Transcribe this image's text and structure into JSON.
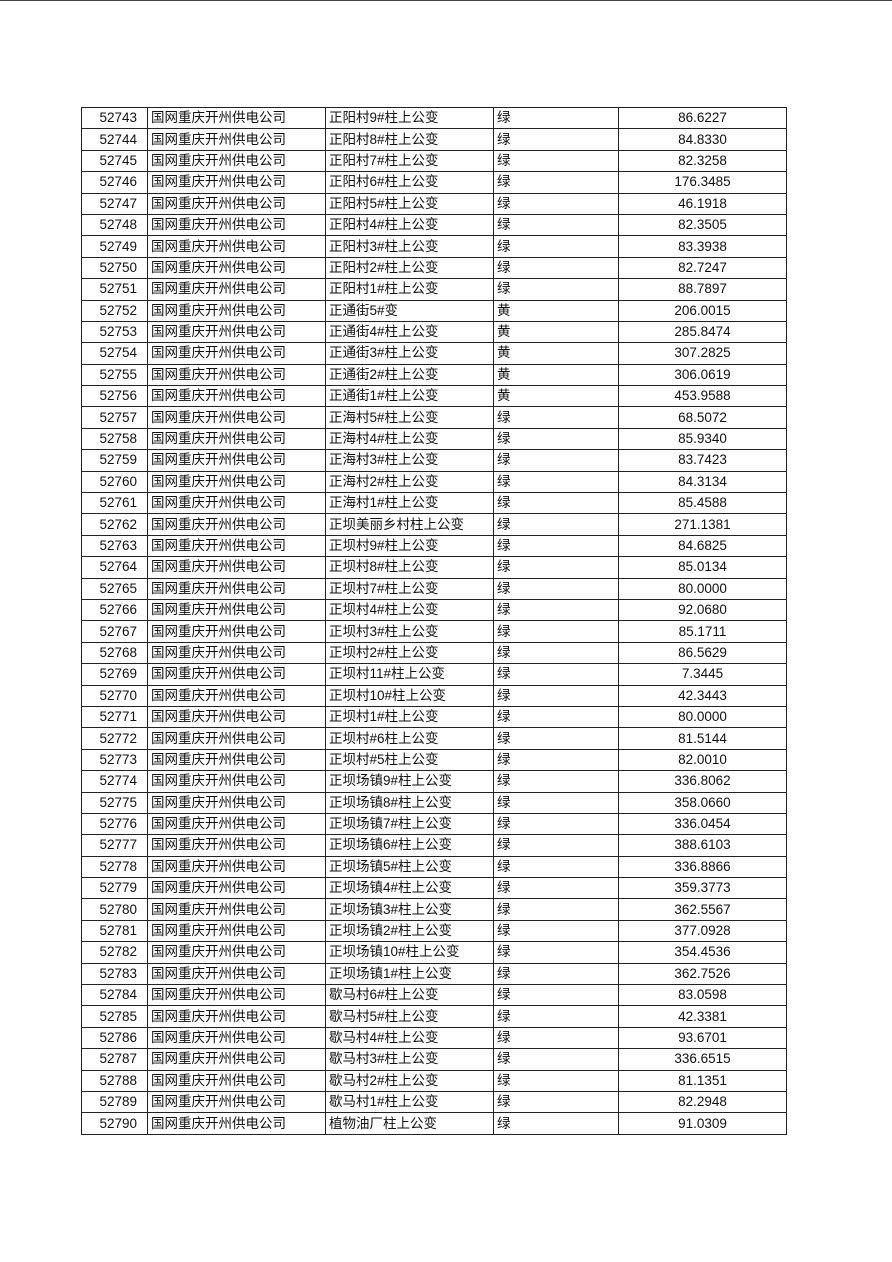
{
  "table": {
    "rows": [
      [
        "52743",
        "国网重庆开州供电公司",
        "正阳村9#柱上公变",
        "绿",
        "86.6227"
      ],
      [
        "52744",
        "国网重庆开州供电公司",
        "正阳村8#柱上公变",
        "绿",
        "84.8330"
      ],
      [
        "52745",
        "国网重庆开州供电公司",
        "正阳村7#柱上公变",
        "绿",
        "82.3258"
      ],
      [
        "52746",
        "国网重庆开州供电公司",
        "正阳村6#柱上公变",
        "绿",
        "176.3485"
      ],
      [
        "52747",
        "国网重庆开州供电公司",
        "正阳村5#柱上公变",
        "绿",
        "46.1918"
      ],
      [
        "52748",
        "国网重庆开州供电公司",
        "正阳村4#柱上公变",
        "绿",
        "82.3505"
      ],
      [
        "52749",
        "国网重庆开州供电公司",
        "正阳村3#柱上公变",
        "绿",
        "83.3938"
      ],
      [
        "52750",
        "国网重庆开州供电公司",
        "正阳村2#柱上公变",
        "绿",
        "82.7247"
      ],
      [
        "52751",
        "国网重庆开州供电公司",
        "正阳村1#柱上公变",
        "绿",
        "88.7897"
      ],
      [
        "52752",
        "国网重庆开州供电公司",
        "正通街5#变",
        "黄",
        "206.0015"
      ],
      [
        "52753",
        "国网重庆开州供电公司",
        "正通街4#柱上公变",
        "黄",
        "285.8474"
      ],
      [
        "52754",
        "国网重庆开州供电公司",
        "正通街3#柱上公变",
        "黄",
        "307.2825"
      ],
      [
        "52755",
        "国网重庆开州供电公司",
        "正通街2#柱上公变",
        "黄",
        "306.0619"
      ],
      [
        "52756",
        "国网重庆开州供电公司",
        "正通街1#柱上公变",
        "黄",
        "453.9588"
      ],
      [
        "52757",
        "国网重庆开州供电公司",
        "正海村5#柱上公变",
        "绿",
        "68.5072"
      ],
      [
        "52758",
        "国网重庆开州供电公司",
        "正海村4#柱上公变",
        "绿",
        "85.9340"
      ],
      [
        "52759",
        "国网重庆开州供电公司",
        "正海村3#柱上公变",
        "绿",
        "83.7423"
      ],
      [
        "52760",
        "国网重庆开州供电公司",
        "正海村2#柱上公变",
        "绿",
        "84.3134"
      ],
      [
        "52761",
        "国网重庆开州供电公司",
        "正海村1#柱上公变",
        "绿",
        "85.4588"
      ],
      [
        "52762",
        "国网重庆开州供电公司",
        "正坝美丽乡村柱上公变",
        "绿",
        "271.1381"
      ],
      [
        "52763",
        "国网重庆开州供电公司",
        "正坝村9#柱上公变",
        "绿",
        "84.6825"
      ],
      [
        "52764",
        "国网重庆开州供电公司",
        "正坝村8#柱上公变",
        "绿",
        "85.0134"
      ],
      [
        "52765",
        "国网重庆开州供电公司",
        "正坝村7#柱上公变",
        "绿",
        "80.0000"
      ],
      [
        "52766",
        "国网重庆开州供电公司",
        "正坝村4#柱上公变",
        "绿",
        "92.0680"
      ],
      [
        "52767",
        "国网重庆开州供电公司",
        "正坝村3#柱上公变",
        "绿",
        "85.1711"
      ],
      [
        "52768",
        "国网重庆开州供电公司",
        "正坝村2#柱上公变",
        "绿",
        "86.5629"
      ],
      [
        "52769",
        "国网重庆开州供电公司",
        "正坝村11#柱上公变",
        "绿",
        "7.3445"
      ],
      [
        "52770",
        "国网重庆开州供电公司",
        "正坝村10#柱上公变",
        "绿",
        "42.3443"
      ],
      [
        "52771",
        "国网重庆开州供电公司",
        "正坝村1#柱上公变",
        "绿",
        "80.0000"
      ],
      [
        "52772",
        "国网重庆开州供电公司",
        "正坝村#6柱上公变",
        "绿",
        "81.5144"
      ],
      [
        "52773",
        "国网重庆开州供电公司",
        "正坝村#5柱上公变",
        "绿",
        "82.0010"
      ],
      [
        "52774",
        "国网重庆开州供电公司",
        "正坝场镇9#柱上公变",
        "绿",
        "336.8062"
      ],
      [
        "52775",
        "国网重庆开州供电公司",
        "正坝场镇8#柱上公变",
        "绿",
        "358.0660"
      ],
      [
        "52776",
        "国网重庆开州供电公司",
        "正坝场镇7#柱上公变",
        "绿",
        "336.0454"
      ],
      [
        "52777",
        "国网重庆开州供电公司",
        "正坝场镇6#柱上公变",
        "绿",
        "388.6103"
      ],
      [
        "52778",
        "国网重庆开州供电公司",
        "正坝场镇5#柱上公变",
        "绿",
        "336.8866"
      ],
      [
        "52779",
        "国网重庆开州供电公司",
        "正坝场镇4#柱上公变",
        "绿",
        "359.3773"
      ],
      [
        "52780",
        "国网重庆开州供电公司",
        "正坝场镇3#柱上公变",
        "绿",
        "362.5567"
      ],
      [
        "52781",
        "国网重庆开州供电公司",
        "正坝场镇2#柱上公变",
        "绿",
        "377.0928"
      ],
      [
        "52782",
        "国网重庆开州供电公司",
        "正坝场镇10#柱上公变",
        "绿",
        "354.4536"
      ],
      [
        "52783",
        "国网重庆开州供电公司",
        "正坝场镇1#柱上公变",
        "绿",
        "362.7526"
      ],
      [
        "52784",
        "国网重庆开州供电公司",
        "歇马村6#柱上公变",
        "绿",
        "83.0598"
      ],
      [
        "52785",
        "国网重庆开州供电公司",
        "歇马村5#柱上公变",
        "绿",
        "42.3381"
      ],
      [
        "52786",
        "国网重庆开州供电公司",
        "歇马村4#柱上公变",
        "绿",
        "93.6701"
      ],
      [
        "52787",
        "国网重庆开州供电公司",
        "歇马村3#柱上公变",
        "绿",
        "336.6515"
      ],
      [
        "52788",
        "国网重庆开州供电公司",
        "歇马村2#柱上公变",
        "绿",
        "81.1351"
      ],
      [
        "52789",
        "国网重庆开州供电公司",
        "歇马村1#柱上公变",
        "绿",
        "82.2948"
      ],
      [
        "52790",
        "国网重庆开州供电公司",
        "植物油厂柱上公变",
        "绿",
        "91.0309"
      ]
    ]
  }
}
